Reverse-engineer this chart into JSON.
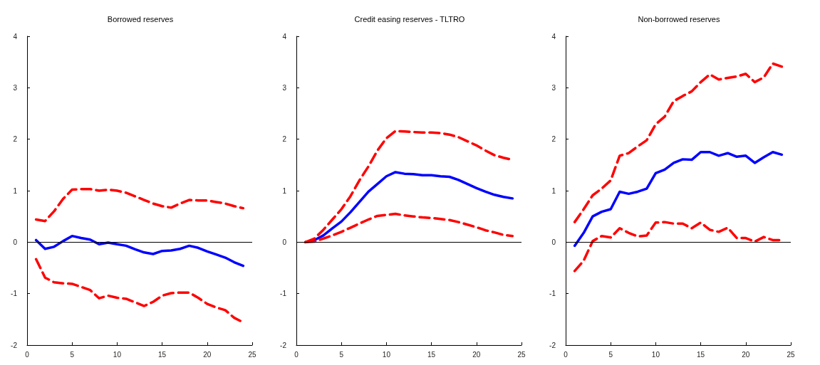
{
  "chart_data": [
    {
      "type": "line",
      "title": "Borrowed reserves",
      "x": [
        1,
        2,
        3,
        4,
        5,
        6,
        7,
        8,
        9,
        10,
        11,
        12,
        13,
        14,
        15,
        16,
        17,
        18,
        19,
        20,
        21,
        22,
        23,
        24
      ],
      "xlim": [
        0,
        25
      ],
      "xticks": [
        0,
        5,
        10,
        15,
        20,
        25
      ],
      "ylim": [
        -2,
        4
      ],
      "yticks": [
        -2,
        -1,
        0,
        1,
        2,
        3,
        4
      ],
      "grid": false,
      "marker": "none",
      "ref_lines": [
        {
          "axis": "y",
          "value": 0,
          "color": "#000000",
          "line_style": "solid"
        }
      ],
      "series": [
        {
          "color": "#0000ff",
          "line_style": "solid",
          "values": [
            0.04,
            -0.13,
            -0.09,
            0.02,
            0.12,
            0.08,
            0.05,
            -0.04,
            -0.01,
            -0.04,
            -0.07,
            -0.14,
            -0.2,
            -0.23,
            -0.17,
            -0.16,
            -0.13,
            -0.07,
            -0.11,
            -0.18,
            -0.24,
            -0.3,
            -0.39,
            -0.46
          ]
        },
        {
          "color": "#ff0000",
          "line_style": "dashed",
          "values": [
            0.44,
            0.41,
            0.6,
            0.84,
            1.02,
            1.03,
            1.03,
            1.0,
            1.02,
            1.0,
            0.96,
            0.89,
            0.82,
            0.75,
            0.7,
            0.67,
            0.75,
            0.82,
            0.81,
            0.81,
            0.78,
            0.75,
            0.7,
            0.66
          ]
        },
        {
          "color": "#ff0000",
          "line_style": "dashed",
          "values": [
            -0.33,
            -0.69,
            -0.78,
            -0.8,
            -0.81,
            -0.87,
            -0.93,
            -1.09,
            -1.04,
            -1.08,
            -1.1,
            -1.17,
            -1.24,
            -1.16,
            -1.04,
            -0.99,
            -0.98,
            -0.98,
            -1.08,
            -1.2,
            -1.27,
            -1.32,
            -1.47,
            -1.56
          ]
        }
      ]
    },
    {
      "type": "line",
      "title": "Credit easing reserves - TLTRO",
      "x": [
        1,
        2,
        3,
        4,
        5,
        6,
        7,
        8,
        9,
        10,
        11,
        12,
        13,
        14,
        15,
        16,
        17,
        18,
        19,
        20,
        21,
        22,
        23,
        24
      ],
      "xlim": [
        0,
        25
      ],
      "xticks": [
        0,
        5,
        10,
        15,
        20,
        25
      ],
      "ylim": [
        -2,
        4
      ],
      "yticks": [
        -2,
        -1,
        0,
        1,
        2,
        3,
        4
      ],
      "grid": false,
      "marker": "none",
      "ref_lines": [
        {
          "axis": "y",
          "value": 0,
          "color": "#000000",
          "line_style": "solid"
        }
      ],
      "series": [
        {
          "color": "#0000ff",
          "line_style": "solid",
          "values": [
            0,
            0.04,
            0.13,
            0.27,
            0.4,
            0.58,
            0.78,
            0.98,
            1.13,
            1.28,
            1.36,
            1.33,
            1.32,
            1.3,
            1.3,
            1.28,
            1.27,
            1.21,
            1.13,
            1.05,
            0.98,
            0.92,
            0.88,
            0.85
          ]
        },
        {
          "color": "#ff0000",
          "line_style": "dashed",
          "values": [
            0,
            0.07,
            0.24,
            0.44,
            0.64,
            0.89,
            1.2,
            1.47,
            1.78,
            2.02,
            2.16,
            2.15,
            2.14,
            2.13,
            2.13,
            2.12,
            2.09,
            2.04,
            1.96,
            1.88,
            1.78,
            1.69,
            1.64,
            1.6
          ]
        },
        {
          "color": "#ff0000",
          "line_style": "dashed",
          "values": [
            0,
            0.01,
            0.07,
            0.13,
            0.2,
            0.28,
            0.36,
            0.44,
            0.51,
            0.53,
            0.55,
            0.52,
            0.5,
            0.48,
            0.47,
            0.45,
            0.43,
            0.39,
            0.34,
            0.29,
            0.23,
            0.19,
            0.14,
            0.12
          ]
        }
      ]
    },
    {
      "type": "line",
      "title": "Non-borrowed reserves",
      "x": [
        1,
        2,
        3,
        4,
        5,
        6,
        7,
        8,
        9,
        10,
        11,
        12,
        13,
        14,
        15,
        16,
        17,
        18,
        19,
        20,
        21,
        22,
        23,
        24
      ],
      "xlim": [
        0,
        25
      ],
      "xticks": [
        0,
        5,
        10,
        15,
        20,
        25
      ],
      "ylim": [
        -2,
        4
      ],
      "yticks": [
        -2,
        -1,
        0,
        1,
        2,
        3,
        4
      ],
      "grid": false,
      "marker": "none",
      "ref_lines": [
        {
          "axis": "y",
          "value": 0,
          "color": "#000000",
          "line_style": "solid"
        }
      ],
      "series": [
        {
          "color": "#0000ff",
          "line_style": "solid",
          "values": [
            -0.07,
            0.18,
            0.5,
            0.59,
            0.64,
            0.98,
            0.94,
            0.98,
            1.04,
            1.34,
            1.41,
            1.54,
            1.61,
            1.6,
            1.75,
            1.75,
            1.68,
            1.73,
            1.66,
            1.68,
            1.54,
            1.65,
            1.75,
            1.7
          ]
        },
        {
          "color": "#ff0000",
          "line_style": "dashed",
          "values": [
            0.39,
            0.64,
            0.91,
            1.04,
            1.2,
            1.68,
            1.73,
            1.86,
            1.98,
            2.29,
            2.44,
            2.74,
            2.84,
            2.93,
            3.11,
            3.26,
            3.16,
            3.19,
            3.22,
            3.27,
            3.11,
            3.2,
            3.47,
            3.41
          ]
        },
        {
          "color": "#ff0000",
          "line_style": "dashed",
          "values": [
            -0.56,
            -0.36,
            0.02,
            0.12,
            0.09,
            0.27,
            0.18,
            0.11,
            0.13,
            0.38,
            0.39,
            0.36,
            0.36,
            0.27,
            0.38,
            0.24,
            0.2,
            0.28,
            0.08,
            0.08,
            0.01,
            0.1,
            0.04,
            0.04
          ]
        }
      ]
    }
  ]
}
